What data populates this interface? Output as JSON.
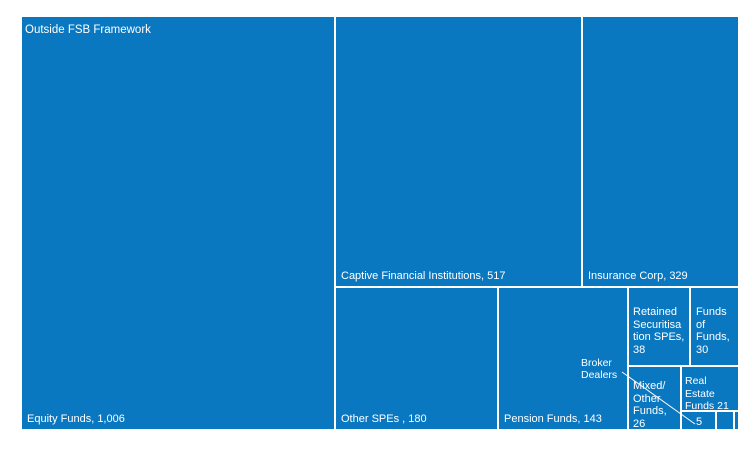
{
  "chart_data": {
    "type": "treemap",
    "group_label": "Outside FSB Framework",
    "colors": {
      "tile": "#0a77c1",
      "border": "#ffffff",
      "text": "#ffffff"
    },
    "items": [
      {
        "name": "Equity  Funds",
        "value": 1006,
        "label": "Equity  Funds, 1,006"
      },
      {
        "name": "Captive Financial Institutions",
        "value": 517,
        "label": "Captive Financial Institutions, 517"
      },
      {
        "name": "Insurance Corp",
        "value": 329,
        "label": "Insurance Corp, 329"
      },
      {
        "name": "Other SPEs",
        "value": 180,
        "label": "Other SPEs , 180"
      },
      {
        "name": "Pension Funds",
        "value": 143,
        "label": "Pension Funds, 143"
      },
      {
        "name": "Retained Securitisation SPEs",
        "value": 38,
        "label": "Retained Securitisa tion SPEs, 38"
      },
      {
        "name": "Funds of Funds",
        "value": 30,
        "label": "Funds of Funds, 30"
      },
      {
        "name": "Mixed/ Other Funds",
        "value": 26,
        "label": "Mixed/ Other Funds, 26"
      },
      {
        "name": "Real Estate Funds",
        "value": 21,
        "label": "Real Estate Funds 21"
      },
      {
        "name": "Broker Dealers",
        "value": 5,
        "label": "5",
        "callout": "Broker Dealers"
      },
      {
        "name": "",
        "value": null,
        "label": ""
      },
      {
        "name": "",
        "value": null,
        "label": ""
      }
    ]
  }
}
